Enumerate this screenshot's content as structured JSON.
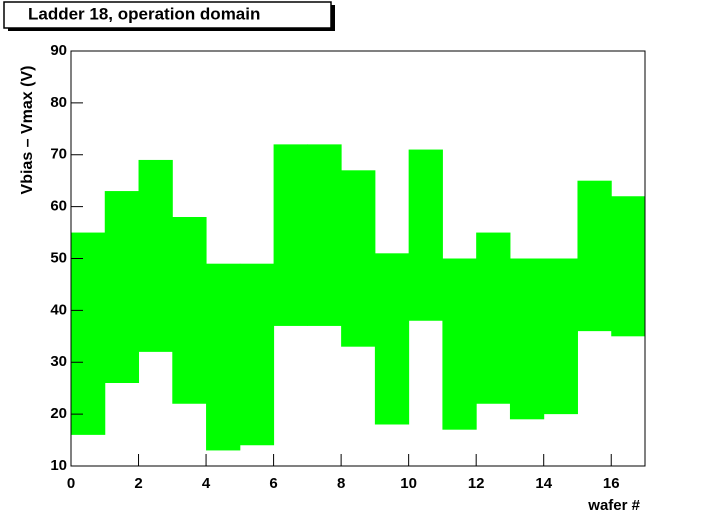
{
  "chart_data": {
    "type": "range_bar",
    "title": "Ladder 18, operation domain",
    "x_label": "wafer #",
    "y_label": "Vbias – Vmax (V)",
    "bins": [
      0,
      1,
      2,
      3,
      4,
      5,
      6,
      7,
      8,
      9,
      10,
      11,
      12,
      13,
      14,
      15,
      16,
      17
    ],
    "low": [
      16,
      26,
      32,
      22,
      13,
      14,
      37,
      37,
      33,
      18,
      38,
      17,
      22,
      19,
      20,
      36,
      35
    ],
    "high": [
      55,
      63,
      69,
      58,
      49,
      49,
      72,
      72,
      67,
      51,
      71,
      50,
      55,
      50,
      50,
      65,
      62
    ],
    "color": "#00ff00",
    "xlim": [
      0,
      17
    ],
    "xticks": [
      0,
      2,
      4,
      6,
      8,
      10,
      12,
      14,
      16
    ],
    "ylim": [
      10,
      90
    ],
    "yticks": [
      10,
      20,
      30,
      40,
      50,
      60,
      70,
      80,
      90
    ]
  }
}
